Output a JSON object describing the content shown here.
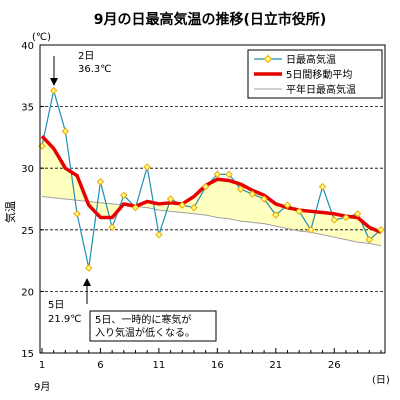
{
  "chart_data": {
    "type": "line",
    "title": "9月の日最高気温の推移(日立市役所)",
    "ylabel": "気温",
    "yunit": "(℃)",
    "xunit": "(日)",
    "xmonth": "9月",
    "ylim": [
      15,
      40
    ],
    "xlim": [
      1,
      30
    ],
    "yticks": [
      15,
      20,
      25,
      30,
      35,
      40
    ],
    "xticks": [
      1,
      6,
      11,
      16,
      21,
      26
    ],
    "grid": "horizontal-dashed",
    "legend_position": "top-right",
    "colors": {
      "daily": "#1e8fb4",
      "marker": "#f0a800",
      "moving": "#e60000",
      "normal": "#a0a0a0",
      "fill": "#ffffc0"
    },
    "days": [
      1,
      2,
      3,
      4,
      5,
      6,
      7,
      8,
      9,
      10,
      11,
      12,
      13,
      14,
      15,
      16,
      17,
      18,
      19,
      20,
      21,
      22,
      23,
      24,
      25,
      26,
      27,
      28,
      29,
      30
    ],
    "series": [
      {
        "name": "日最高気温",
        "values": [
          31.8,
          36.3,
          33.0,
          26.3,
          21.9,
          28.9,
          25.2,
          27.8,
          26.8,
          30.1,
          24.6,
          27.5,
          27.0,
          26.8,
          28.5,
          29.5,
          29.5,
          28.3,
          27.9,
          27.5,
          26.2,
          27.0,
          26.5,
          25.0,
          28.5,
          25.8,
          26.0,
          26.3,
          24.2,
          25.0
        ]
      },
      {
        "name": "5日間移動平均",
        "values": [
          32.6,
          31.6,
          30.0,
          29.4,
          27.0,
          26.0,
          26.0,
          27.1,
          26.9,
          27.3,
          27.1,
          27.2,
          27.1,
          27.7,
          28.6,
          29.1,
          29.0,
          28.7,
          28.2,
          27.8,
          27.1,
          26.8,
          26.6,
          26.5,
          26.4,
          26.3,
          26.1,
          26.0,
          25.2,
          24.8
        ]
      },
      {
        "name": "平年日最高気温",
        "values": [
          27.7,
          27.6,
          27.5,
          27.4,
          27.3,
          27.2,
          27.1,
          27.0,
          26.9,
          26.8,
          26.6,
          26.5,
          26.4,
          26.3,
          26.2,
          26.0,
          25.9,
          25.7,
          25.6,
          25.5,
          25.3,
          25.1,
          24.9,
          24.8,
          24.6,
          24.4,
          24.2,
          24.0,
          23.9,
          23.7
        ]
      }
    ],
    "annotations": [
      {
        "day": "2日",
        "value": "36.3℃"
      },
      {
        "day": "5日",
        "value": "21.9℃"
      },
      {
        "note": "5日、一時的に寒気が入り気温が低くなる。"
      }
    ]
  }
}
